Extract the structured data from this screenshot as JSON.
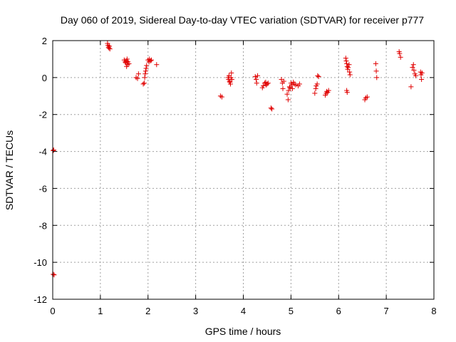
{
  "chart_data": {
    "type": "scatter",
    "title": "Day 060 of 2019, Sidereal Day-to-day VTEC variation (SDTVAR) for receiver p777",
    "xlabel": "GPS time / hours",
    "ylabel": "SDTVAR / TECUs",
    "xlim": [
      0,
      8
    ],
    "ylim": [
      -12,
      2
    ],
    "xticks": [
      "0",
      "1",
      "2",
      "3",
      "4",
      "5",
      "6",
      "7",
      "8"
    ],
    "yticks": [
      "2",
      "0",
      "-2",
      "-4",
      "-6",
      "-8",
      "-10",
      "-12"
    ],
    "grid": true,
    "marker": "plus",
    "color": "#e00000",
    "series": [
      {
        "points": [
          [
            0.01,
            -3.95
          ],
          [
            0.02,
            -3.92
          ],
          [
            0.01,
            -10.65
          ],
          [
            0.03,
            -10.68
          ],
          [
            1.15,
            1.85
          ],
          [
            1.16,
            1.75
          ],
          [
            1.17,
            1.65
          ],
          [
            1.18,
            1.6
          ],
          [
            1.2,
            1.55
          ],
          [
            1.19,
            1.7
          ],
          [
            1.5,
            0.95
          ],
          [
            1.52,
            0.85
          ],
          [
            1.53,
            0.8
          ],
          [
            1.55,
            0.9
          ],
          [
            1.56,
            1.0
          ],
          [
            1.57,
            0.7
          ],
          [
            1.58,
            0.85
          ],
          [
            1.55,
            0.6
          ],
          [
            1.6,
            0.75
          ],
          [
            1.75,
            0.0
          ],
          [
            1.78,
            -0.05
          ],
          [
            1.8,
            0.2
          ],
          [
            1.9,
            -0.35
          ],
          [
            1.92,
            -0.3
          ],
          [
            1.93,
            0.0
          ],
          [
            1.94,
            0.2
          ],
          [
            1.95,
            0.35
          ],
          [
            1.96,
            0.5
          ],
          [
            1.97,
            0.65
          ],
          [
            2.0,
            0.95
          ],
          [
            2.02,
            0.85
          ],
          [
            2.03,
            1.0
          ],
          [
            2.05,
            0.9
          ],
          [
            2.07,
            0.95
          ],
          [
            2.18,
            0.7
          ],
          [
            3.52,
            -1.0
          ],
          [
            3.55,
            -1.05
          ],
          [
            3.68,
            0.0
          ],
          [
            3.69,
            -0.1
          ],
          [
            3.7,
            0.1
          ],
          [
            3.71,
            -0.2
          ],
          [
            3.72,
            -0.25
          ],
          [
            3.73,
            -0.35
          ],
          [
            3.74,
            0.0
          ],
          [
            3.75,
            0.25
          ],
          [
            3.76,
            -0.1
          ],
          [
            4.25,
            0.05
          ],
          [
            4.27,
            -0.1
          ],
          [
            4.28,
            -0.3
          ],
          [
            4.3,
            0.1
          ],
          [
            4.4,
            -0.55
          ],
          [
            4.42,
            -0.45
          ],
          [
            4.45,
            -0.3
          ],
          [
            4.47,
            -0.25
          ],
          [
            4.48,
            -0.4
          ],
          [
            4.5,
            -0.35
          ],
          [
            4.52,
            -0.3
          ],
          [
            4.58,
            -1.65
          ],
          [
            4.6,
            -1.7
          ],
          [
            4.8,
            -0.1
          ],
          [
            4.82,
            -0.3
          ],
          [
            4.83,
            -0.6
          ],
          [
            4.85,
            -0.2
          ],
          [
            4.92,
            -0.9
          ],
          [
            4.94,
            -1.2
          ],
          [
            4.95,
            -0.7
          ],
          [
            4.97,
            -0.5
          ],
          [
            4.98,
            -0.55
          ],
          [
            5.0,
            -0.3
          ],
          [
            5.02,
            -0.4
          ],
          [
            5.03,
            -0.6
          ],
          [
            5.05,
            -0.25
          ],
          [
            5.07,
            -0.35
          ],
          [
            5.1,
            -0.4
          ],
          [
            5.15,
            -0.45
          ],
          [
            5.18,
            -0.35
          ],
          [
            5.5,
            -0.85
          ],
          [
            5.52,
            -0.6
          ],
          [
            5.53,
            -0.45
          ],
          [
            5.55,
            -0.35
          ],
          [
            5.56,
            0.1
          ],
          [
            5.58,
            0.05
          ],
          [
            5.72,
            -0.95
          ],
          [
            5.74,
            -0.85
          ],
          [
            5.75,
            -0.75
          ],
          [
            5.77,
            -0.8
          ],
          [
            5.79,
            -0.7
          ],
          [
            6.15,
            1.05
          ],
          [
            6.16,
            0.9
          ],
          [
            6.17,
            0.75
          ],
          [
            6.18,
            0.6
          ],
          [
            6.19,
            0.45
          ],
          [
            6.2,
            0.55
          ],
          [
            6.22,
            0.7
          ],
          [
            6.23,
            0.3
          ],
          [
            6.24,
            0.15
          ],
          [
            6.17,
            -0.7
          ],
          [
            6.18,
            -0.8
          ],
          [
            6.55,
            -1.2
          ],
          [
            6.57,
            -1.1
          ],
          [
            6.6,
            -1.05
          ],
          [
            6.78,
            0.75
          ],
          [
            6.79,
            0.35
          ],
          [
            6.8,
            0.0
          ],
          [
            7.27,
            1.4
          ],
          [
            7.28,
            1.3
          ],
          [
            7.3,
            1.1
          ],
          [
            7.52,
            -0.5
          ],
          [
            7.55,
            0.55
          ],
          [
            7.57,
            0.7
          ],
          [
            7.58,
            0.4
          ],
          [
            7.6,
            0.2
          ],
          [
            7.62,
            0.1
          ],
          [
            7.72,
            0.3
          ],
          [
            7.73,
            0.15
          ],
          [
            7.74,
            -0.1
          ],
          [
            7.75,
            0.25
          ]
        ]
      }
    ]
  }
}
